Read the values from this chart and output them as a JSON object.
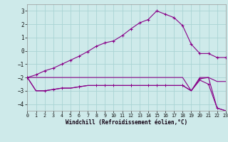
{
  "xlabel": "Windchill (Refroidissement éolien,°C)",
  "xlim": [
    0,
    23
  ],
  "ylim": [
    -4.5,
    3.5
  ],
  "yticks": [
    -4,
    -3,
    -2,
    -1,
    0,
    1,
    2,
    3
  ],
  "xticks": [
    0,
    1,
    2,
    3,
    4,
    5,
    6,
    7,
    8,
    9,
    10,
    11,
    12,
    13,
    14,
    15,
    16,
    17,
    18,
    19,
    20,
    21,
    22,
    23
  ],
  "bg_color": "#ceeaea",
  "line_color": "#880088",
  "grid_color": "#aad4d4",
  "curve_upper_x": [
    0,
    1,
    2,
    3,
    4,
    5,
    6,
    7,
    8,
    9,
    10,
    11,
    12,
    13,
    14,
    15,
    16,
    17,
    18,
    19,
    20,
    21,
    22,
    23
  ],
  "curve_upper_y": [
    -2.0,
    -1.8,
    -1.5,
    -1.3,
    -1.0,
    -0.7,
    -0.4,
    -0.05,
    0.35,
    0.6,
    0.75,
    1.15,
    1.65,
    2.1,
    2.35,
    3.0,
    2.75,
    2.5,
    1.9,
    0.5,
    -0.2,
    -0.2,
    -0.5,
    -0.5
  ],
  "curve_mid_x": [
    0,
    1,
    2,
    3,
    4,
    5,
    6,
    7,
    8,
    9,
    10,
    11,
    12,
    13,
    14,
    15,
    16,
    17,
    18,
    19,
    20,
    21,
    22,
    23
  ],
  "curve_mid_y": [
    -2.0,
    -2.0,
    -2.0,
    -2.0,
    -2.0,
    -2.0,
    -2.0,
    -2.0,
    -2.0,
    -2.0,
    -2.0,
    -2.0,
    -2.0,
    -2.0,
    -2.0,
    -2.0,
    -2.0,
    -2.0,
    -2.0,
    -3.0,
    -2.0,
    -2.0,
    -2.3,
    -2.3
  ],
  "curve_low1_x": [
    0,
    1,
    2,
    3,
    4,
    5,
    6,
    7,
    8,
    9,
    10,
    11,
    12,
    13,
    14,
    15,
    16,
    17,
    18,
    19,
    20,
    21,
    22,
    23
  ],
  "curve_low1_y": [
    -2.0,
    -3.0,
    -3.0,
    -2.9,
    -2.8,
    -2.8,
    -2.7,
    -2.6,
    -2.6,
    -2.6,
    -2.6,
    -2.6,
    -2.6,
    -2.6,
    -2.6,
    -2.6,
    -2.6,
    -2.6,
    -2.6,
    -3.0,
    -2.1,
    -2.0,
    -4.3,
    -4.5
  ],
  "curve_low2_x": [
    0,
    1,
    2,
    3,
    4,
    5,
    6,
    7,
    8,
    9,
    10,
    11,
    12,
    13,
    14,
    15,
    16,
    17,
    18,
    19,
    20,
    21,
    22,
    23
  ],
  "curve_low2_y": [
    -2.0,
    -3.0,
    -3.0,
    -2.9,
    -2.8,
    -2.8,
    -2.7,
    -2.6,
    -2.6,
    -2.6,
    -2.6,
    -2.6,
    -2.6,
    -2.6,
    -2.6,
    -2.6,
    -2.6,
    -2.6,
    -2.6,
    -3.0,
    -2.2,
    -2.5,
    -4.3,
    -4.5
  ]
}
